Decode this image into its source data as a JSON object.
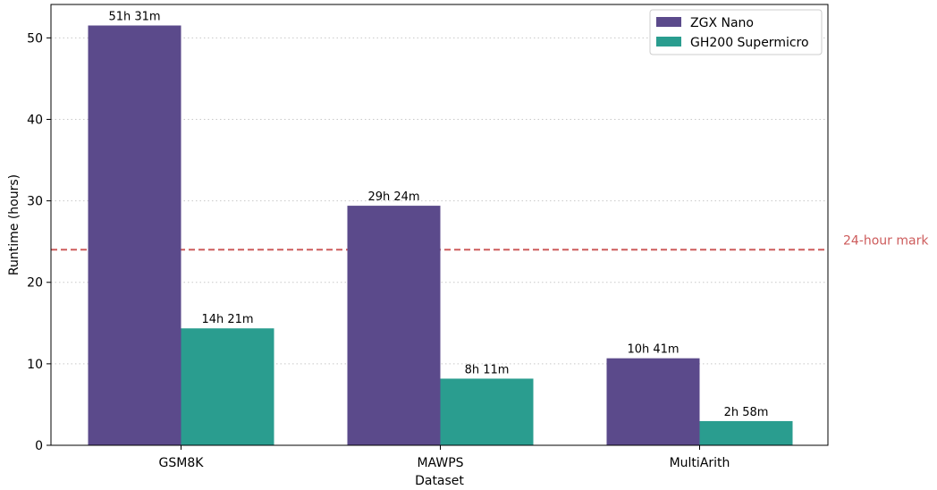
{
  "chart_data": {
    "type": "bar",
    "xlabel": "Dataset",
    "ylabel": "Runtime (hours)",
    "categories": [
      "GSM8K",
      "MAWPS",
      "MultiArith"
    ],
    "series": [
      {
        "name": "ZGX Nano",
        "color": "#5b4a8b",
        "values": [
          51.52,
          29.4,
          10.68
        ],
        "labels": [
          "51h 31m",
          "29h 24m",
          "10h 41m"
        ]
      },
      {
        "name": "GH200 Supermicro",
        "color": "#2a9d8f",
        "values": [
          14.35,
          8.18,
          2.97
        ],
        "labels": [
          "14h 21m",
          "8h 11m",
          "2h 58m"
        ]
      }
    ],
    "ylim": [
      0,
      54.1
    ],
    "yticks": [
      0,
      10,
      20,
      30,
      40,
      50
    ],
    "grid": "horizontal-dotted",
    "legend": "top-right",
    "reference_line": {
      "value": 24,
      "label": "24-hour mark",
      "color": "#cd5c5c"
    }
  }
}
